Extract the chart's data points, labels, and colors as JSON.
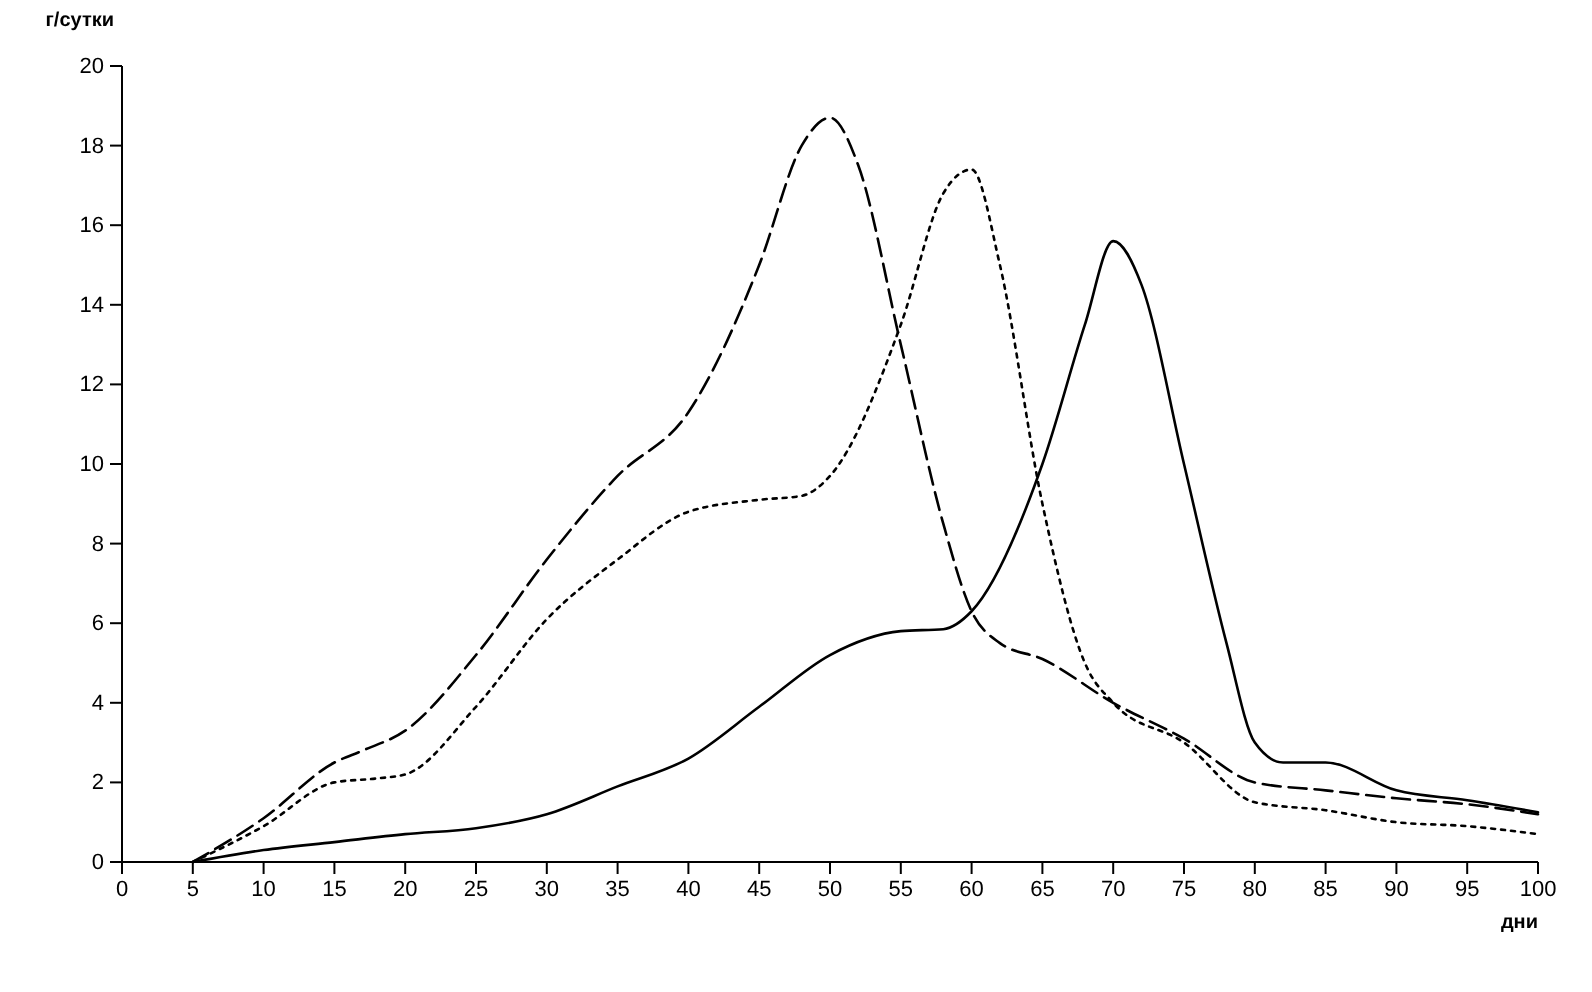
{
  "chart_data": {
    "type": "line",
    "ylabel": "г/сутки",
    "xlabel": "дни",
    "xlim": [
      0,
      100
    ],
    "ylim": [
      0,
      20
    ],
    "xticks": [
      0,
      5,
      10,
      15,
      20,
      25,
      30,
      35,
      40,
      45,
      50,
      55,
      60,
      65,
      70,
      75,
      80,
      85,
      90,
      95,
      100
    ],
    "yticks": [
      0,
      2,
      4,
      6,
      8,
      10,
      12,
      14,
      16,
      18,
      20
    ],
    "grid": false,
    "marker": "none",
    "series": [
      {
        "color": "#000000",
        "line_style": "solid",
        "x": [
          5,
          10,
          15,
          20,
          25,
          30,
          35,
          40,
          45,
          50,
          55,
          58,
          60,
          65,
          68,
          70,
          72,
          75,
          78,
          80,
          82,
          85,
          90,
          95,
          100
        ],
        "values": [
          0,
          0.3,
          0.5,
          0.7,
          0.85,
          1.2,
          1.9,
          2.6,
          3.9,
          5.2,
          5.8,
          5.85,
          6.3,
          10,
          13.5,
          15.6,
          14.5,
          10,
          5.5,
          3,
          2.5,
          2.5,
          1.8,
          1.55,
          1.25
        ]
      },
      {
        "color": "#000000",
        "line_style": "dashed",
        "x": [
          5,
          10,
          15,
          17,
          20,
          25,
          30,
          35,
          40,
          45,
          48,
          50,
          52,
          55,
          58,
          60,
          62,
          65,
          70,
          75,
          80,
          85,
          90,
          95,
          100
        ],
        "values": [
          0,
          1.1,
          2.5,
          2.8,
          3.3,
          5.2,
          7.6,
          9.7,
          11.3,
          15,
          18,
          18.7,
          17.5,
          13,
          8.5,
          6.3,
          5.5,
          5.1,
          4,
          3.1,
          2,
          1.8,
          1.6,
          1.45,
          1.2
        ]
      },
      {
        "color": "#000000",
        "line_style": "dotted",
        "x": [
          5,
          10,
          15,
          18,
          20,
          25,
          30,
          35,
          40,
          45,
          48,
          50,
          55,
          58,
          60,
          62,
          65,
          68,
          70,
          75,
          80,
          85,
          90,
          95,
          100
        ],
        "values": [
          0,
          0.9,
          2,
          2.1,
          2.2,
          3.9,
          6.1,
          7.6,
          8.8,
          9.1,
          9.2,
          9.7,
          13.5,
          16.8,
          17.4,
          15,
          9,
          5,
          4,
          3,
          1.5,
          1.3,
          1,
          0.9,
          0.7
        ]
      }
    ]
  }
}
